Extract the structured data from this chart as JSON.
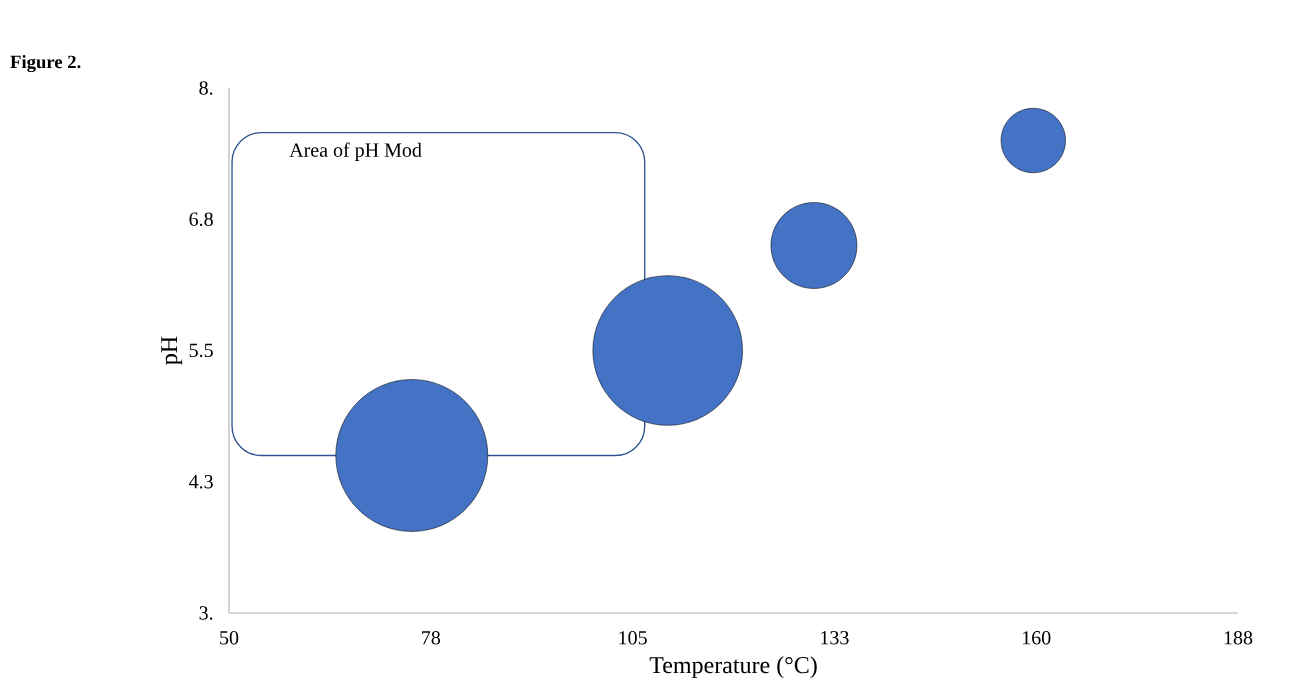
{
  "chart_data": {
    "type": "bubble",
    "title": "Figure   2.",
    "xlabel": "Temperature (°C)",
    "ylabel": "pH",
    "annotations": [
      "Area of pH Mod"
    ],
    "x": [
      75,
      110,
      130,
      160
    ],
    "series": [
      {
        "color": "#4472c4",
        "values": [
          4.5,
          5.5,
          6.5,
          7.5
        ],
        "sizes": [
          1,
          0.97,
          0.32,
          0.18
        ]
      }
    ],
    "xlim": [
      50,
      188
    ],
    "xticks": [
      {
        "value": 50,
        "label": "50"
      },
      {
        "value": 77.6,
        "label": "78"
      },
      {
        "value": 105.2,
        "label": "105"
      },
      {
        "value": 132.8,
        "label": "133"
      },
      {
        "value": 160.4,
        "label": "160"
      },
      {
        "value": 188,
        "label": "188"
      }
    ],
    "ylim": [
      3,
      8
    ],
    "yticks": [
      {
        "value": 3,
        "label": "3."
      },
      {
        "value": 4.25,
        "label": "4.3"
      },
      {
        "value": 5.5,
        "label": "5.5"
      },
      {
        "value": 6.75,
        "label": "6.8"
      },
      {
        "value": 8,
        "label": "8."
      }
    ],
    "grid": false
  }
}
